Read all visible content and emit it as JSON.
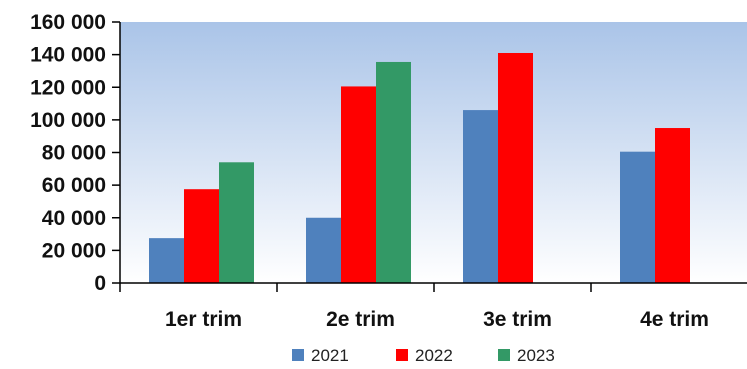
{
  "chart_data": {
    "type": "bar",
    "categories": [
      "1er trim",
      "2e trim",
      "3e trim",
      "4e trim"
    ],
    "series": [
      {
        "name": "2021",
        "color": "#4f81bd",
        "values": [
          27500,
          40000,
          106000,
          80500
        ]
      },
      {
        "name": "2022",
        "color": "#ff0000",
        "values": [
          57500,
          120500,
          141000,
          95000
        ]
      },
      {
        "name": "2023",
        "color": "#339966",
        "values": [
          74000,
          135500,
          null,
          null
        ]
      }
    ],
    "ylim": [
      0,
      160000
    ],
    "yticks": [
      0,
      20000,
      40000,
      60000,
      80000,
      100000,
      120000,
      140000,
      160000
    ],
    "ytick_labels": [
      "0",
      "20 000",
      "40 000",
      "60 000",
      "80 000",
      "100 000",
      "120 000",
      "140 000",
      "160 000"
    ],
    "title": "",
    "xlabel": "",
    "ylabel": "",
    "grid": false,
    "legend_position": "bottom",
    "background_gradient": [
      "#aac4e8",
      "#ffffff"
    ]
  }
}
